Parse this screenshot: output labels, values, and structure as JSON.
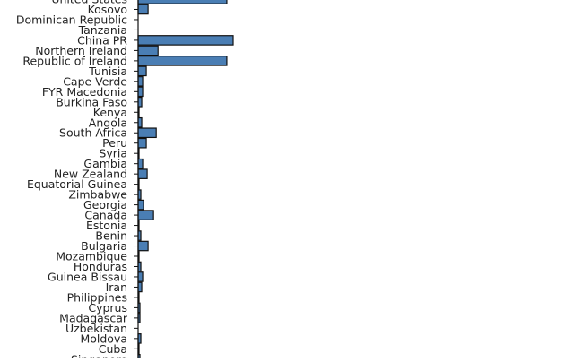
{
  "chart_data": {
    "type": "bar",
    "orientation": "horizontal",
    "title": "",
    "xlabel": "",
    "ylabel": "",
    "grid": false,
    "bar_color": "#4a7eb4",
    "stroke_color": "#111111",
    "categories": [
      "United States",
      "Kosovo",
      "Dominican Republic",
      "Tanzania",
      "China PR",
      "Northern Ireland",
      "Republic of Ireland",
      "Tunisia",
      "Cape Verde",
      "FYR Macedonia",
      "Burkina Faso",
      "Kenya",
      "Angola",
      "South Africa",
      "Peru",
      "Syria",
      "Gambia",
      "New Zealand",
      "Equatorial Guinea",
      "Zimbabwe",
      "Georgia",
      "Canada",
      "Estonia",
      "Benin",
      "Bulgaria",
      "Mozambique",
      "Honduras",
      "Guinea Bissau",
      "Iran",
      "Philippines",
      "Cyprus",
      "Madagascar",
      "Uzbekistan",
      "Moldova",
      "Cuba",
      "Singapore"
    ],
    "values": [
      98,
      11,
      0,
      0,
      105,
      22,
      98,
      9,
      5,
      5,
      4,
      1,
      4,
      20,
      9,
      1,
      5,
      10,
      1,
      3,
      6,
      17,
      1,
      3,
      11,
      1,
      3,
      5,
      4,
      1,
      2,
      2,
      0,
      3,
      1,
      2
    ],
    "xlim": [
      0,
      105
    ]
  }
}
